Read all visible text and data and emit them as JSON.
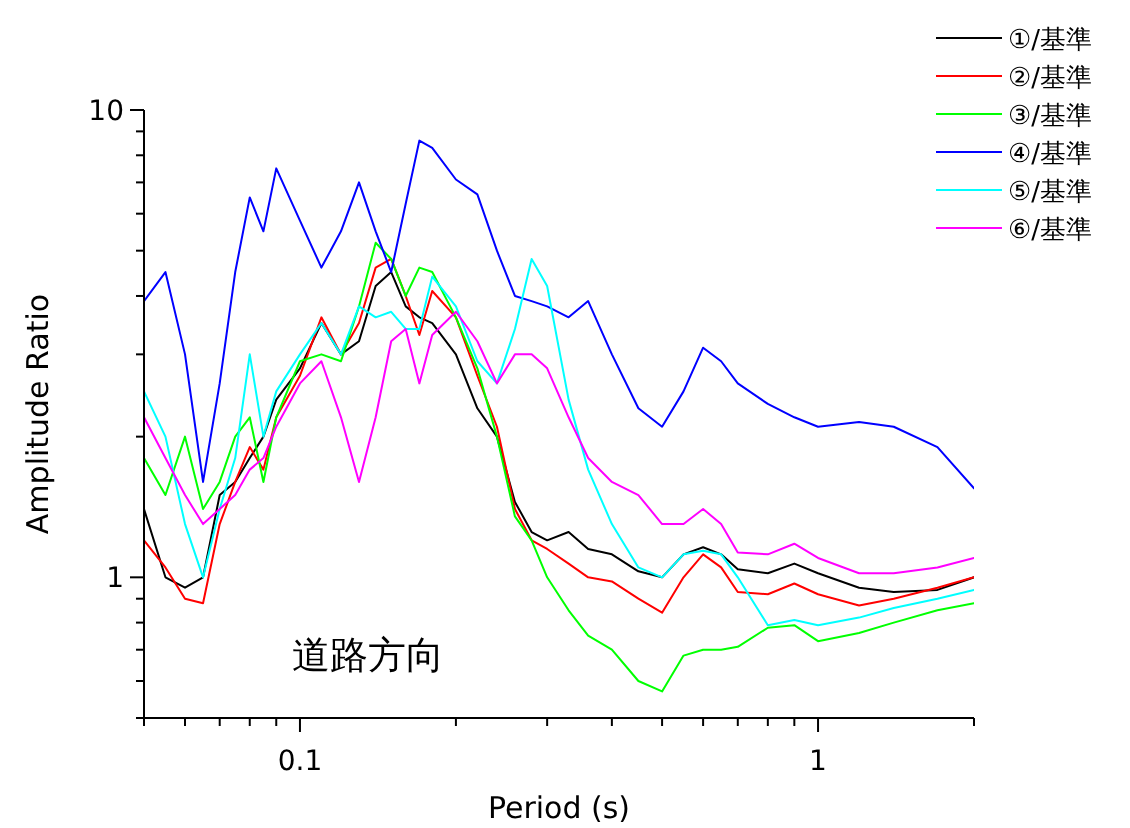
{
  "chart_data": {
    "type": "line",
    "xlabel": "Period (s)",
    "ylabel": "Amplitude Ratio",
    "log": "xy",
    "grid": false,
    "legend": "top right",
    "marker": "none",
    "line_style": "solid",
    "xlim": [
      0.05,
      2
    ],
    "ylim": [
      0.5,
      10
    ],
    "xticks": [
      {
        "value": 0.05,
        "label": null
      },
      {
        "value": 0.06,
        "label": null
      },
      {
        "value": 0.07,
        "label": null
      },
      {
        "value": 0.08,
        "label": null
      },
      {
        "value": 0.09,
        "label": null
      },
      0.1,
      {
        "value": 0.2,
        "label": null
      },
      {
        "value": 0.3,
        "label": null
      },
      {
        "value": 0.4,
        "label": null
      },
      {
        "value": 0.5,
        "label": null
      },
      {
        "value": 0.6,
        "label": null
      },
      {
        "value": 0.7,
        "label": null
      },
      {
        "value": 0.8,
        "label": null
      },
      {
        "value": 0.9,
        "label": null
      },
      1,
      {
        "value": 2,
        "label": null
      }
    ],
    "yticks": [
      {
        "value": 0.5,
        "label": null
      },
      {
        "value": 0.6,
        "label": null
      },
      {
        "value": 0.7,
        "label": null
      },
      {
        "value": 0.8,
        "label": null
      },
      {
        "value": 0.9,
        "label": null
      },
      1,
      {
        "value": 2,
        "label": null
      },
      {
        "value": 3,
        "label": null
      },
      {
        "value": 4,
        "label": null
      },
      {
        "value": 5,
        "label": null
      },
      {
        "value": 6,
        "label": null
      },
      {
        "value": 7,
        "label": null
      },
      {
        "value": 8,
        "label": null
      },
      {
        "value": 9,
        "label": null
      },
      10
    ],
    "annotations": [
      "道路方向"
    ],
    "x": [
      0.05,
      0.055,
      0.06,
      0.065,
      0.07,
      0.075,
      0.08,
      0.085,
      0.09,
      0.1,
      0.11,
      0.12,
      0.13,
      0.14,
      0.15,
      0.16,
      0.17,
      0.18,
      0.2,
      0.22,
      0.24,
      0.26,
      0.28,
      0.3,
      0.33,
      0.36,
      0.4,
      0.45,
      0.5,
      0.55,
      0.6,
      0.65,
      0.7,
      0.8,
      0.9,
      1.0,
      1.2,
      1.4,
      1.7,
      2.0
    ],
    "series": [
      {
        "name": "①/基準",
        "color": "#000000",
        "values": [
          1.4,
          1.0,
          0.95,
          1.0,
          1.5,
          1.6,
          1.8,
          2.0,
          2.4,
          2.8,
          3.5,
          3.0,
          3.2,
          4.2,
          4.5,
          3.8,
          3.6,
          3.5,
          3.0,
          2.3,
          2.0,
          1.45,
          1.25,
          1.2,
          1.25,
          1.15,
          1.12,
          1.03,
          1.0,
          1.12,
          1.16,
          1.12,
          1.04,
          1.02,
          1.07,
          1.02,
          0.95,
          0.93,
          0.94,
          1.0
        ]
      },
      {
        "name": "②/基準",
        "color": "#ff0000",
        "values": [
          1.2,
          1.05,
          0.9,
          0.88,
          1.3,
          1.6,
          1.9,
          1.7,
          2.2,
          2.7,
          3.6,
          3.0,
          3.5,
          4.6,
          4.8,
          4.0,
          3.3,
          4.1,
          3.6,
          2.7,
          2.1,
          1.4,
          1.2,
          1.15,
          1.07,
          1.0,
          0.98,
          0.9,
          0.84,
          1.0,
          1.12,
          1.05,
          0.93,
          0.92,
          0.97,
          0.92,
          0.87,
          0.9,
          0.95,
          1.0
        ]
      },
      {
        "name": "③/基準",
        "color": "#00ff00",
        "values": [
          1.8,
          1.5,
          2.0,
          1.4,
          1.6,
          2.0,
          2.2,
          1.6,
          2.2,
          2.9,
          3.0,
          2.9,
          3.8,
          5.2,
          4.8,
          4.0,
          4.6,
          4.5,
          3.6,
          2.8,
          2.0,
          1.35,
          1.2,
          1.0,
          0.85,
          0.75,
          0.7,
          0.6,
          0.57,
          0.68,
          0.7,
          0.7,
          0.71,
          0.78,
          0.79,
          0.73,
          0.76,
          0.8,
          0.85,
          0.88
        ]
      },
      {
        "name": "④/基準",
        "color": "#0000ff",
        "values": [
          3.9,
          4.5,
          3.0,
          1.6,
          2.6,
          4.5,
          6.5,
          5.5,
          7.5,
          5.8,
          4.6,
          5.5,
          7.0,
          5.5,
          4.5,
          6.3,
          8.6,
          8.3,
          7.1,
          6.6,
          5.0,
          4.0,
          3.9,
          3.8,
          3.6,
          3.9,
          3.0,
          2.3,
          2.1,
          2.5,
          3.1,
          2.9,
          2.6,
          2.35,
          2.2,
          2.1,
          2.15,
          2.1,
          1.9,
          1.55
        ]
      },
      {
        "name": "⑤/基準",
        "color": "#00ffff",
        "values": [
          2.5,
          2.0,
          1.3,
          1.0,
          1.4,
          1.8,
          3.0,
          2.0,
          2.5,
          3.0,
          3.5,
          3.0,
          3.8,
          3.6,
          3.7,
          3.4,
          3.4,
          4.4,
          3.8,
          2.9,
          2.6,
          3.4,
          4.8,
          4.2,
          2.4,
          1.7,
          1.3,
          1.05,
          1.0,
          1.12,
          1.14,
          1.12,
          1.0,
          0.79,
          0.81,
          0.79,
          0.82,
          0.86,
          0.9,
          0.94
        ]
      },
      {
        "name": "⑥/基準",
        "color": "#ff00ff",
        "values": [
          2.2,
          1.8,
          1.5,
          1.3,
          1.4,
          1.5,
          1.7,
          1.8,
          2.1,
          2.6,
          2.9,
          2.2,
          1.6,
          2.2,
          3.2,
          3.4,
          2.6,
          3.3,
          3.7,
          3.2,
          2.6,
          3.0,
          3.0,
          2.8,
          2.2,
          1.8,
          1.6,
          1.5,
          1.3,
          1.3,
          1.4,
          1.3,
          1.13,
          1.12,
          1.18,
          1.1,
          1.02,
          1.02,
          1.05,
          1.1
        ]
      }
    ]
  }
}
